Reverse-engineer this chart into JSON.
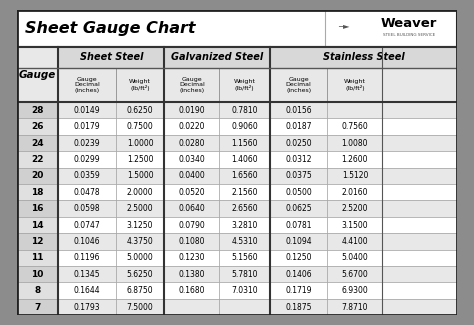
{
  "title": "Sheet Gauge Chart",
  "outer_bg": "#8c8c8c",
  "inner_bg": "#ffffff",
  "title_bg": "#ffffff",
  "header_section_bg": "#d8d8d8",
  "header_sub_bg": "#e8e8e8",
  "row_alt_bg": "#e8e8e8",
  "row_plain_bg": "#ffffff",
  "gauge_alt_bg": "#d0d0d0",
  "gauge_plain_bg": "#e0e0e0",
  "border_dark": "#333333",
  "border_light": "#aaaaaa",
  "gauges": [
    28,
    26,
    24,
    22,
    20,
    18,
    16,
    14,
    12,
    11,
    10,
    8,
    7
  ],
  "sheet_steel": {
    "decimal": [
      "0.0149",
      "0.0179",
      "0.0239",
      "0.0299",
      "0.0359",
      "0.0478",
      "0.0598",
      "0.0747",
      "0.1046",
      "0.1196",
      "0.1345",
      "0.1644",
      "0.1793"
    ],
    "weight": [
      "0.6250",
      "0.7500",
      "1.0000",
      "1.2500",
      "1.5000",
      "2.0000",
      "2.5000",
      "3.1250",
      "4.3750",
      "5.0000",
      "5.6250",
      "6.8750",
      "7.5000"
    ]
  },
  "galvanized_steel": {
    "decimal": [
      "0.0190",
      "0.0220",
      "0.0280",
      "0.0340",
      "0.0400",
      "0.0520",
      "0.0640",
      "0.0790",
      "0.1080",
      "0.1230",
      "0.1380",
      "0.1680",
      ""
    ],
    "weight": [
      "0.7810",
      "0.9060",
      "1.1560",
      "1.4060",
      "1.6560",
      "2.1560",
      "2.6560",
      "3.2810",
      "4.5310",
      "5.1560",
      "5.7810",
      "7.0310",
      ""
    ]
  },
  "stainless_steel": {
    "decimal": [
      "0.0156",
      "0.0187",
      "0.0250",
      "0.0312",
      "0.0375",
      "0.0500",
      "0.0625",
      "0.0781",
      "0.1094",
      "0.1250",
      "0.1406",
      "0.1719",
      "0.1875"
    ],
    "weight": [
      "",
      "0.7560",
      "1.0080",
      "1.2600",
      "1.5120",
      "2.0160",
      "2.5200",
      "3.1500",
      "4.4100",
      "5.0400",
      "5.6700",
      "6.9300",
      "7.8710"
    ]
  },
  "section_headers": [
    "Sheet Steel",
    "Galvanized Steel",
    "Stainless Steel"
  ],
  "gauge_label": "Gauge",
  "col_sub_label1": "Gauge\nDecimal\n(inches)",
  "col_sub_label2": "Weight\n(lb/ft²)",
  "weaver_text": "Weaver",
  "weaver_sub": "STEEL BUILDING SERVICE"
}
